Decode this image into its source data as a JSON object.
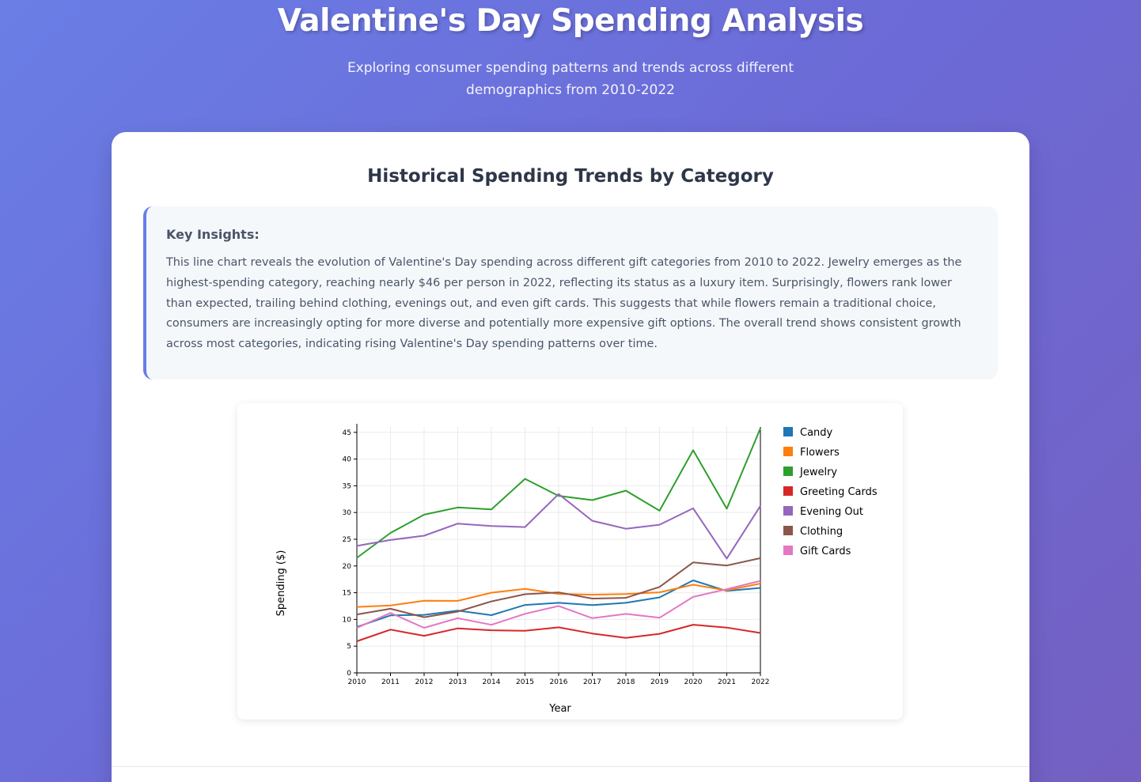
{
  "header": {
    "title": "Valentine's Day Spending Analysis",
    "subtitle": "Exploring consumer spending patterns and trends across different demographics from 2010-2022"
  },
  "section": {
    "title": "Historical Spending Trends by Category"
  },
  "insights": {
    "heading": "Key Insights:",
    "text": "This line chart reveals the evolution of Valentine's Day spending across different gift categories from 2010 to 2022. Jewelry emerges as the highest-spending category, reaching nearly $46 per person in 2022, reflecting its status as a luxury item. Surprisingly, flowers rank lower than expected, trailing behind clothing, evenings out, and even gift cards. This suggests that while flowers remain a traditional choice, consumers are increasingly opting for more diverse and potentially more expensive gift options. The overall trend shows consistent growth across most categories, indicating rising Valentine's Day spending patterns over time."
  },
  "chart_data": {
    "type": "line",
    "x": [
      2010,
      2011,
      2012,
      2013,
      2014,
      2015,
      2016,
      2017,
      2018,
      2019,
      2020,
      2021,
      2022
    ],
    "xlabel": "Year",
    "ylabel": "Spending ($)",
    "ylim": [
      0,
      46
    ],
    "yticks": [
      0,
      5,
      10,
      15,
      20,
      25,
      30,
      35,
      40,
      45
    ],
    "grid": true,
    "legend_position": "right",
    "series": [
      {
        "name": "Candy",
        "color": "#1f77b4",
        "values": [
          8.6,
          10.75,
          10.85,
          11.64,
          10.8,
          12.7,
          13.11,
          12.68,
          13.11,
          14.12,
          17.3,
          15.32,
          15.9
        ]
      },
      {
        "name": "Flowers",
        "color": "#ff7f0e",
        "values": [
          12.33,
          12.62,
          13.49,
          13.48,
          15.0,
          15.72,
          14.78,
          14.63,
          14.76,
          15.07,
          16.49,
          15.42,
          16.71
        ]
      },
      {
        "name": "Jewelry",
        "color": "#2ca02c",
        "values": [
          21.52,
          26.18,
          29.6,
          30.94,
          30.58,
          36.3,
          33.11,
          32.32,
          34.1,
          30.34,
          41.65,
          30.71,
          45.75
        ]
      },
      {
        "name": "Greeting Cards",
        "color": "#d62728",
        "values": [
          5.91,
          8.09,
          6.93,
          8.32,
          7.97,
          7.87,
          8.52,
          7.36,
          6.55,
          7.31,
          9.01,
          8.47,
          7.47
        ]
      },
      {
        "name": "Evening Out",
        "color": "#9467bd",
        "values": [
          23.76,
          24.86,
          25.66,
          27.93,
          27.48,
          27.27,
          33.46,
          28.46,
          26.96,
          27.72,
          30.78,
          21.39,
          31.24
        ]
      },
      {
        "name": "Clothing",
        "color": "#8c564b",
        "values": [
          10.93,
          12.0,
          10.42,
          11.46,
          13.37,
          14.72,
          15.05,
          13.91,
          14.04,
          16.08,
          20.67,
          20.09,
          21.46
        ]
      },
      {
        "name": "Gift Cards",
        "color": "#e377c2",
        "values": [
          8.42,
          11.21,
          8.43,
          10.23,
          9.0,
          11.05,
          12.52,
          10.23,
          11.04,
          10.31,
          14.21,
          15.67,
          17.22
        ]
      }
    ]
  }
}
